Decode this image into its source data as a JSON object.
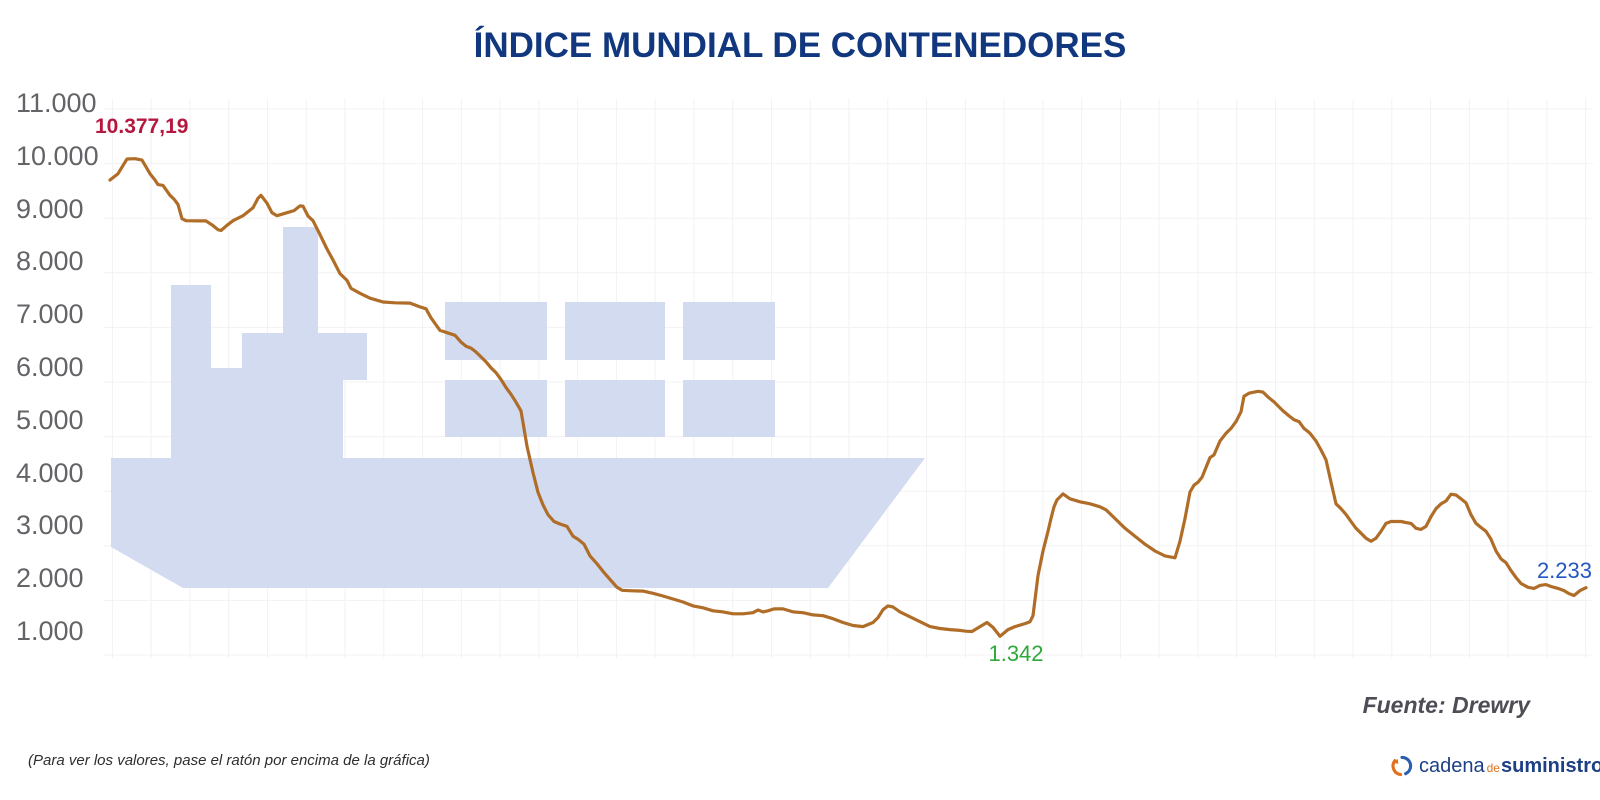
{
  "title": "ÍNDICE MUNDIAL DE CONTENEDORES",
  "note": "(Para ver los valores, pase el ratón por encima de la gráfica)",
  "source": "Fuente: Drewry",
  "logo": {
    "word1": "cadena",
    "word2": "de",
    "word3": "suministro"
  },
  "colors": {
    "title": "#11377e",
    "line": "#b06d28",
    "max_annotation": "#b5173f",
    "min_annotation": "#2fa93a",
    "last_annotation": "#2456c6",
    "axis_label": "#646468",
    "watermark_ship": "#d2dbf0",
    "grid": "#f2f2f5"
  },
  "chart_data": {
    "type": "line",
    "title": "ÍNDICE MUNDIAL DE CONTENEDORES",
    "xlabel": "",
    "ylabel": "",
    "grid": true,
    "legend": false,
    "x_axis": {
      "tick_labels": []
    },
    "y_axis": {
      "min": 1000,
      "max": 11000,
      "tick_step": 1000,
      "tick_labels": [
        "11.000",
        "10.000",
        "9.000",
        "8.000",
        "7.000",
        "6.000",
        "5.000",
        "4.000",
        "3.000",
        "2.000",
        "1.000"
      ]
    },
    "annotations": [
      {
        "role": "max",
        "label": "10.377,19",
        "value": 10377.19,
        "color": "#b5173f"
      },
      {
        "role": "min",
        "label": "1.342",
        "value": 1342,
        "color": "#2fa93a"
      },
      {
        "role": "last",
        "label": "2.233",
        "value": 2233,
        "color": "#2456c6"
      }
    ],
    "points": [
      [
        110,
        9700
      ],
      [
        118,
        9815
      ],
      [
        127,
        10085
      ],
      [
        135,
        10090
      ],
      [
        142,
        10065
      ],
      [
        150,
        9815
      ],
      [
        155,
        9700
      ],
      [
        158,
        9615
      ],
      [
        163,
        9600
      ],
      [
        170,
        9420
      ],
      [
        174,
        9350
      ],
      [
        178,
        9250
      ],
      [
        182,
        8990
      ],
      [
        186,
        8955
      ],
      [
        198,
        8950
      ],
      [
        206,
        8950
      ],
      [
        213,
        8865
      ],
      [
        218,
        8790
      ],
      [
        221,
        8775
      ],
      [
        227,
        8870
      ],
      [
        233,
        8955
      ],
      [
        243,
        9045
      ],
      [
        253,
        9190
      ],
      [
        258,
        9365
      ],
      [
        261,
        9420
      ],
      [
        267,
        9275
      ],
      [
        272,
        9100
      ],
      [
        277,
        9045
      ],
      [
        287,
        9100
      ],
      [
        294,
        9140
      ],
      [
        300,
        9225
      ],
      [
        303,
        9220
      ],
      [
        308,
        9040
      ],
      [
        313,
        8955
      ],
      [
        320,
        8700
      ],
      [
        327,
        8435
      ],
      [
        333,
        8235
      ],
      [
        340,
        7985
      ],
      [
        347,
        7860
      ],
      [
        351,
        7715
      ],
      [
        360,
        7625
      ],
      [
        370,
        7535
      ],
      [
        383,
        7465
      ],
      [
        395,
        7450
      ],
      [
        410,
        7445
      ],
      [
        420,
        7375
      ],
      [
        426,
        7340
      ],
      [
        431,
        7175
      ],
      [
        440,
        6945
      ],
      [
        446,
        6910
      ],
      [
        455,
        6855
      ],
      [
        461,
        6730
      ],
      [
        466,
        6655
      ],
      [
        471,
        6620
      ],
      [
        476,
        6550
      ],
      [
        481,
        6460
      ],
      [
        486,
        6370
      ],
      [
        491,
        6260
      ],
      [
        496,
        6170
      ],
      [
        501,
        6045
      ],
      [
        506,
        5900
      ],
      [
        511,
        5775
      ],
      [
        516,
        5630
      ],
      [
        521,
        5470
      ],
      [
        527,
        4825
      ],
      [
        533,
        4340
      ],
      [
        538,
        3980
      ],
      [
        543,
        3750
      ],
      [
        548,
        3570
      ],
      [
        554,
        3445
      ],
      [
        560,
        3400
      ],
      [
        567,
        3355
      ],
      [
        573,
        3175
      ],
      [
        578,
        3120
      ],
      [
        584,
        3030
      ],
      [
        590,
        2815
      ],
      [
        597,
        2670
      ],
      [
        604,
        2510
      ],
      [
        610,
        2385
      ],
      [
        617,
        2240
      ],
      [
        622,
        2185
      ],
      [
        632,
        2175
      ],
      [
        643,
        2170
      ],
      [
        653,
        2130
      ],
      [
        663,
        2080
      ],
      [
        673,
        2025
      ],
      [
        683,
        1970
      ],
      [
        693,
        1900
      ],
      [
        703,
        1865
      ],
      [
        713,
        1810
      ],
      [
        723,
        1790
      ],
      [
        733,
        1755
      ],
      [
        743,
        1755
      ],
      [
        753,
        1775
      ],
      [
        758,
        1825
      ],
      [
        763,
        1790
      ],
      [
        768,
        1810
      ],
      [
        774,
        1845
      ],
      [
        783,
        1845
      ],
      [
        793,
        1790
      ],
      [
        803,
        1775
      ],
      [
        813,
        1735
      ],
      [
        823,
        1720
      ],
      [
        833,
        1665
      ],
      [
        843,
        1595
      ],
      [
        853,
        1540
      ],
      [
        863,
        1520
      ],
      [
        873,
        1595
      ],
      [
        878,
        1685
      ],
      [
        883,
        1830
      ],
      [
        888,
        1900
      ],
      [
        893,
        1880
      ],
      [
        900,
        1790
      ],
      [
        910,
        1700
      ],
      [
        920,
        1610
      ],
      [
        930,
        1520
      ],
      [
        940,
        1485
      ],
      [
        950,
        1465
      ],
      [
        960,
        1450
      ],
      [
        966,
        1435
      ],
      [
        972,
        1430
      ],
      [
        980,
        1520
      ],
      [
        987,
        1595
      ],
      [
        993,
        1505
      ],
      [
        1000,
        1342
      ],
      [
        1008,
        1465
      ],
      [
        1015,
        1520
      ],
      [
        1025,
        1575
      ],
      [
        1030,
        1610
      ],
      [
        1033,
        1720
      ],
      [
        1038,
        2455
      ],
      [
        1043,
        2905
      ],
      [
        1048,
        3265
      ],
      [
        1051,
        3500
      ],
      [
        1054,
        3715
      ],
      [
        1057,
        3840
      ],
      [
        1063,
        3950
      ],
      [
        1070,
        3860
      ],
      [
        1080,
        3805
      ],
      [
        1090,
        3770
      ],
      [
        1100,
        3715
      ],
      [
        1106,
        3660
      ],
      [
        1115,
        3500
      ],
      [
        1125,
        3320
      ],
      [
        1135,
        3175
      ],
      [
        1145,
        3030
      ],
      [
        1155,
        2905
      ],
      [
        1165,
        2815
      ],
      [
        1175,
        2780
      ],
      [
        1180,
        3085
      ],
      [
        1185,
        3500
      ],
      [
        1190,
        3985
      ],
      [
        1194,
        4110
      ],
      [
        1198,
        4165
      ],
      [
        1202,
        4255
      ],
      [
        1206,
        4435
      ],
      [
        1210,
        4615
      ],
      [
        1214,
        4665
      ],
      [
        1220,
        4920
      ],
      [
        1226,
        5060
      ],
      [
        1231,
        5150
      ],
      [
        1236,
        5275
      ],
      [
        1241,
        5455
      ],
      [
        1244,
        5740
      ],
      [
        1249,
        5795
      ],
      [
        1258,
        5830
      ],
      [
        1263,
        5815
      ],
      [
        1268,
        5725
      ],
      [
        1274,
        5635
      ],
      [
        1283,
        5470
      ],
      [
        1289,
        5380
      ],
      [
        1294,
        5310
      ],
      [
        1299,
        5275
      ],
      [
        1304,
        5150
      ],
      [
        1310,
        5060
      ],
      [
        1316,
        4920
      ],
      [
        1321,
        4755
      ],
      [
        1326,
        4575
      ],
      [
        1331,
        4165
      ],
      [
        1336,
        3770
      ],
      [
        1341,
        3680
      ],
      [
        1346,
        3575
      ],
      [
        1351,
        3445
      ],
      [
        1356,
        3320
      ],
      [
        1361,
        3230
      ],
      [
        1366,
        3140
      ],
      [
        1371,
        3085
      ],
      [
        1376,
        3140
      ],
      [
        1381,
        3265
      ],
      [
        1386,
        3410
      ],
      [
        1391,
        3445
      ],
      [
        1401,
        3445
      ],
      [
        1406,
        3425
      ],
      [
        1411,
        3410
      ],
      [
        1416,
        3320
      ],
      [
        1421,
        3300
      ],
      [
        1426,
        3355
      ],
      [
        1431,
        3535
      ],
      [
        1436,
        3680
      ],
      [
        1441,
        3770
      ],
      [
        1446,
        3820
      ],
      [
        1451,
        3945
      ],
      [
        1456,
        3930
      ],
      [
        1461,
        3860
      ],
      [
        1466,
        3785
      ],
      [
        1471,
        3570
      ],
      [
        1476,
        3410
      ],
      [
        1481,
        3335
      ],
      [
        1486,
        3265
      ],
      [
        1491,
        3120
      ],
      [
        1496,
        2905
      ],
      [
        1501,
        2760
      ],
      [
        1506,
        2690
      ],
      [
        1511,
        2545
      ],
      [
        1516,
        2420
      ],
      [
        1521,
        2310
      ],
      [
        1528,
        2240
      ],
      [
        1534,
        2220
      ],
      [
        1540,
        2275
      ],
      [
        1546,
        2290
      ],
      [
        1551,
        2255
      ],
      [
        1558,
        2220
      ],
      [
        1564,
        2180
      ],
      [
        1569,
        2125
      ],
      [
        1574,
        2090
      ],
      [
        1580,
        2180
      ],
      [
        1586,
        2233
      ]
    ]
  }
}
